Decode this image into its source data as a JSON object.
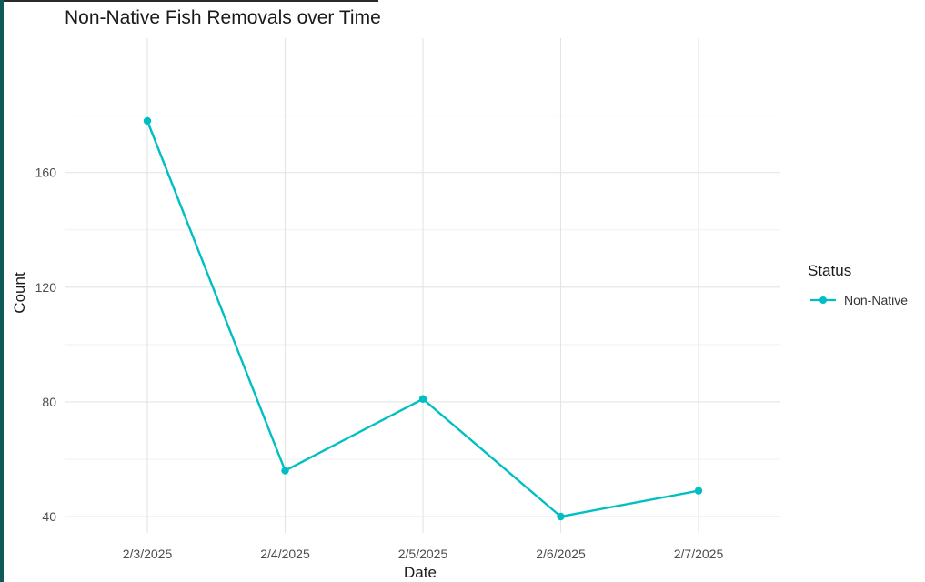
{
  "chart_data": {
    "type": "line",
    "title": "Non-Native Fish Removals over Time",
    "xlabel": "Date",
    "ylabel": "Count",
    "categories": [
      "2/3/2025",
      "2/4/2025",
      "2/5/2025",
      "2/6/2025",
      "2/7/2025"
    ],
    "series": [
      {
        "name": "Non-Native",
        "values": [
          178,
          56,
          81,
          40,
          49
        ],
        "color": "#00bfc4"
      }
    ],
    "yticks": [
      40,
      80,
      120,
      160
    ],
    "ylim": [
      33,
      185
    ],
    "grid": true,
    "legend": {
      "title": "Status",
      "position": "right"
    }
  }
}
